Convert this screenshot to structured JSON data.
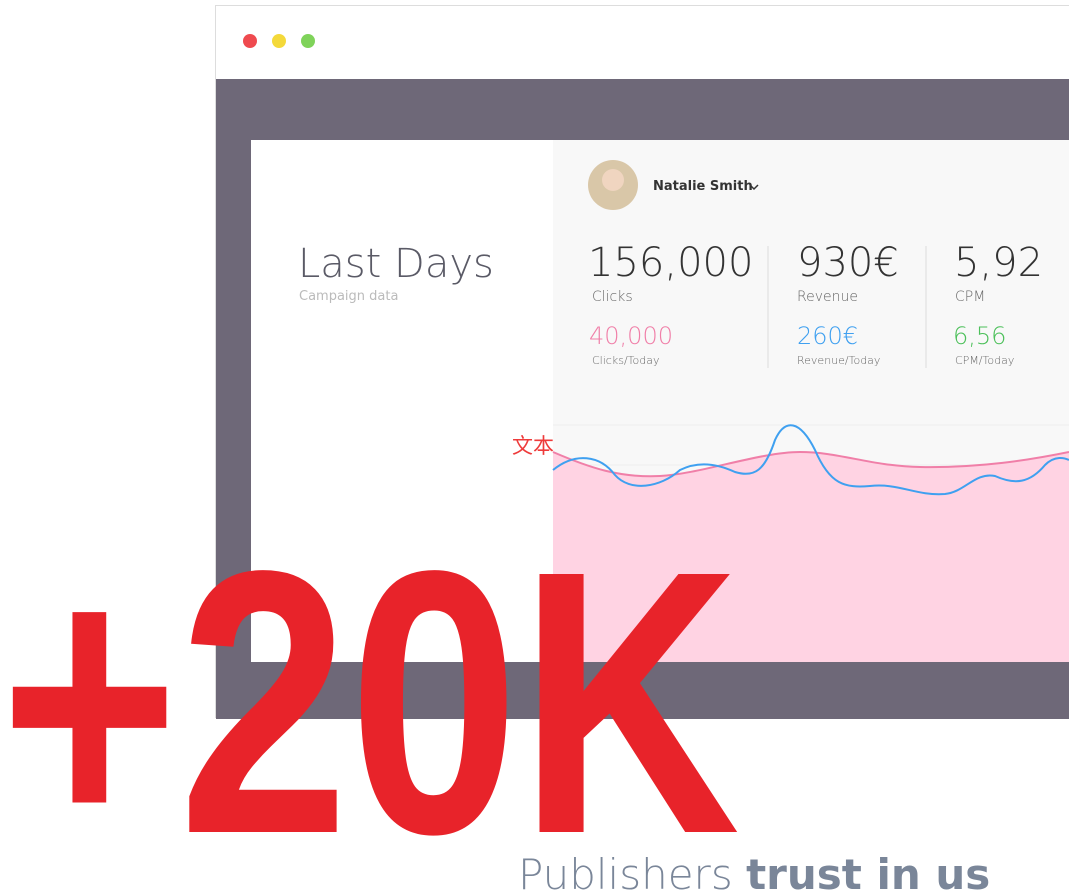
{
  "window": {
    "user": "Natalie Smith"
  },
  "panel": {
    "title": "Last Days",
    "subtitle": "Campaign data"
  },
  "stats": [
    {
      "value": "156,000",
      "label": "Clicks",
      "today": "40,000",
      "today_label": "Clicks/Today"
    },
    {
      "value": "930€",
      "label": "Revenue",
      "today": "260€",
      "today_label": "Revenue/Today"
    },
    {
      "value": "5,92",
      "label": "CPM",
      "today": "6,56",
      "today_label": "CPM/Today"
    }
  ],
  "chart_placeholder": "文本",
  "headline": {
    "number": "+20K",
    "text": "Publishers",
    "text_bold": "trust in us"
  }
}
